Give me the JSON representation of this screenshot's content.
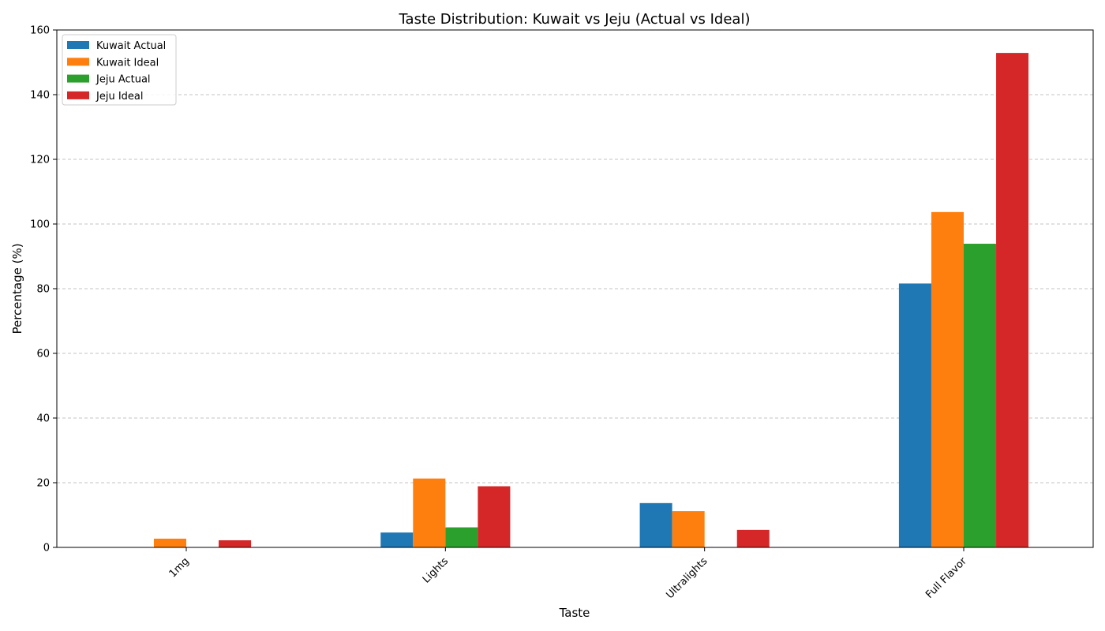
{
  "chart_data": {
    "type": "bar",
    "title": "Taste Distribution: Kuwait vs Jeju (Actual vs Ideal)",
    "xlabel": "Taste",
    "ylabel": "Percentage (%)",
    "categories": [
      "1mg",
      "Lights",
      "Ultralights",
      "Full Flavor"
    ],
    "series": [
      {
        "name": "Kuwait Actual",
        "color": "#1f77b4",
        "values": [
          0,
          4.6,
          13.7,
          81.6
        ]
      },
      {
        "name": "Kuwait Ideal",
        "color": "#ff7f0e",
        "values": [
          2.7,
          21.3,
          11.2,
          103.7
        ]
      },
      {
        "name": "Jeju Actual",
        "color": "#2ca02c",
        "values": [
          0,
          6.2,
          0,
          93.9
        ]
      },
      {
        "name": "Jeju Ideal",
        "color": "#d62728",
        "values": [
          2.2,
          18.9,
          5.4,
          152.9
        ]
      }
    ],
    "ylim": [
      0,
      160
    ],
    "yticks": [
      0,
      20,
      40,
      60,
      80,
      100,
      120,
      140,
      160
    ],
    "grid": "y-dashed",
    "legend_position": "top-left"
  }
}
